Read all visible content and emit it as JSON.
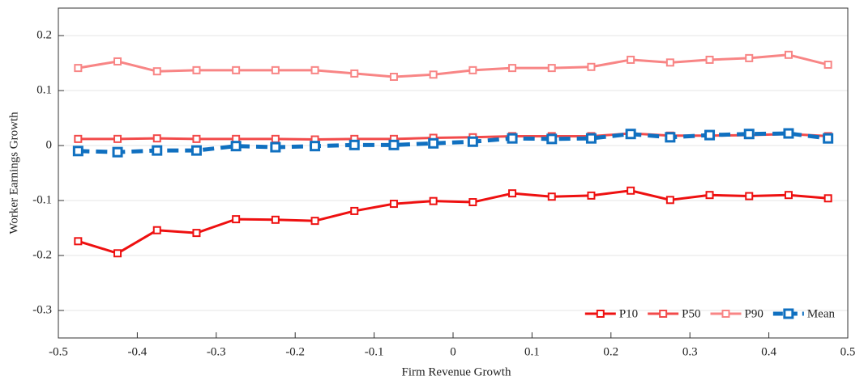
{
  "chart_data": {
    "type": "line",
    "xlabel": "Firm Revenue Growth",
    "ylabel": "Worker Earnings Growth",
    "x": [
      -0.475,
      -0.425,
      -0.375,
      -0.325,
      -0.275,
      -0.225,
      -0.175,
      -0.125,
      -0.075,
      -0.025,
      0.025,
      0.075,
      0.125,
      0.175,
      0.225,
      0.275,
      0.325,
      0.375,
      0.425,
      0.475
    ],
    "series": [
      {
        "name": "P10",
        "color": "#ee1010",
        "dashed": false,
        "values": [
          -0.174,
          -0.196,
          -0.154,
          -0.159,
          -0.134,
          -0.135,
          -0.137,
          -0.119,
          -0.106,
          -0.101,
          -0.103,
          -0.087,
          -0.093,
          -0.091,
          -0.082,
          -0.099,
          -0.09,
          -0.092,
          -0.09,
          -0.096
        ]
      },
      {
        "name": "P50",
        "color": "#f24a4a",
        "dashed": false,
        "values": [
          0.012,
          0.012,
          0.013,
          0.012,
          0.012,
          0.012,
          0.011,
          0.012,
          0.012,
          0.014,
          0.015,
          0.017,
          0.017,
          0.017,
          0.022,
          0.018,
          0.018,
          0.019,
          0.021,
          0.017
        ]
      },
      {
        "name": "P90",
        "color": "#f88585",
        "dashed": false,
        "values": [
          0.141,
          0.153,
          0.135,
          0.137,
          0.137,
          0.137,
          0.137,
          0.131,
          0.125,
          0.129,
          0.137,
          0.141,
          0.141,
          0.143,
          0.156,
          0.151,
          0.156,
          0.159,
          0.165,
          0.147
        ]
      },
      {
        "name": "Mean",
        "color": "#1070c0",
        "dashed": true,
        "values": [
          -0.01,
          -0.012,
          -0.009,
          -0.009,
          -0.001,
          -0.003,
          -0.001,
          0.001,
          0.001,
          0.004,
          0.007,
          0.013,
          0.012,
          0.013,
          0.021,
          0.015,
          0.019,
          0.021,
          0.022,
          0.013
        ]
      }
    ],
    "xlim": [
      -0.5,
      0.5
    ],
    "xticks": [
      -0.5,
      -0.4,
      -0.3,
      -0.2,
      -0.1,
      0,
      0.1,
      0.2,
      0.3,
      0.4,
      0.5
    ],
    "ylim": [
      -0.35,
      0.25
    ],
    "yticks": [
      -0.3,
      -0.2,
      -0.1,
      0,
      0.1,
      0.2
    ],
    "grid": "y",
    "legend": "lower right"
  }
}
